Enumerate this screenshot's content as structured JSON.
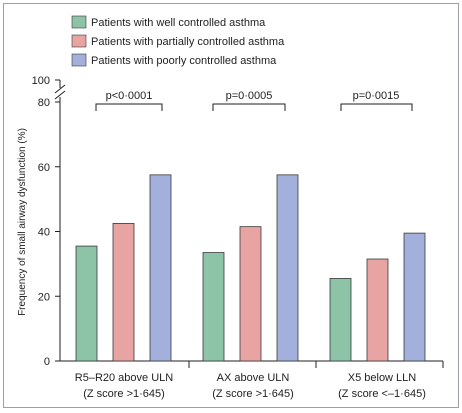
{
  "chart_data": {
    "type": "bar",
    "ylabel": "Frequency of small airway dysfunction (%)",
    "ylim": [
      0,
      80
    ],
    "y_break_top": 100,
    "y_ticks": [
      0,
      20,
      40,
      60,
      80
    ],
    "y_top_label": "100",
    "categories": [
      {
        "line1": "R5–R20 above ULN",
        "line2": "(Z score >1·645)"
      },
      {
        "line1": "AX above ULN",
        "line2": "(Z score >1·645)"
      },
      {
        "line1": "X5 below LLN",
        "line2": "(Z score <–1·645)"
      }
    ],
    "series": [
      {
        "name": "Patients with well controlled asthma",
        "color": "#8dc3a7",
        "values": [
          35.5,
          33.5,
          25.5
        ]
      },
      {
        "name": "Patients with partially controlled asthma",
        "color": "#e8a3a3",
        "values": [
          42.5,
          41.5,
          31.5
        ]
      },
      {
        "name": "Patients with poorly controlled asthma",
        "color": "#a3b0dc",
        "values": [
          57.5,
          57.5,
          39.5
        ]
      }
    ],
    "p_values": [
      "p<0·0001",
      "p=0·0005",
      "p=0·0015"
    ],
    "legend_position": "top-left"
  }
}
